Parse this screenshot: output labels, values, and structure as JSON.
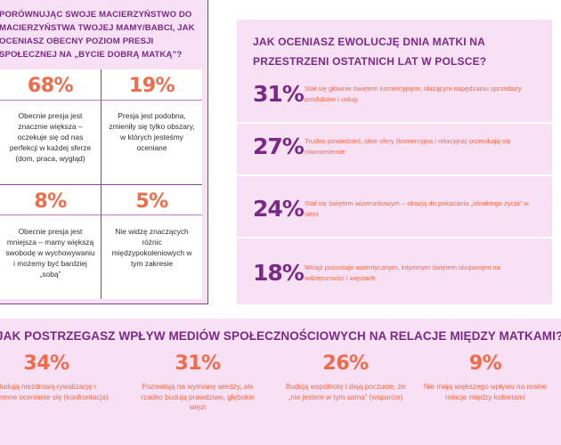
{
  "left": {
    "question": "Porównując swoje macierzyństwo do macierzyństwa twojej mamy/babci, jak oceniasz obecny poziom presji społecznej na „bycie dobrą matką”?",
    "cells": [
      {
        "percent": "68%",
        "text": "Obecnie presja jest znacznie większa – oczekuje się od nas perfekcji w każdej sferze (dom, praca, wygląd)"
      },
      {
        "percent": "19%",
        "text": "Presja jest podobna, zmieniły się tylko obszary, w których jesteśmy oceniane"
      },
      {
        "percent": "8%",
        "text": "Obecnie presja jest mniejsza – mamy większą swobodę w wychowywaniu i możemy być bardziej „sobą”"
      },
      {
        "percent": "5%",
        "text": "Nie widzę znaczących różnic międzypokoleniowych w tym zakresie"
      }
    ]
  },
  "right": {
    "question": "Jak oceniasz ewolucję dnia matki na przestrzeni ostatnich lat w Polsce?",
    "rows": [
      {
        "percent": "31%",
        "text": "Stał się głównie świętem komercyjnym, służącym napędzaniu sprzedaży produktów i usług"
      },
      {
        "percent": "27%",
        "text": "Trudno powiedzieć, obie sfery (komercyjna i relacyjna) przenikają się równomiernie"
      },
      {
        "percent": "24%",
        "text": "Stał się świętem wizerunkowym – okazją do pokazania „idealnego życia” w sieci"
      },
      {
        "percent": "18%",
        "text": "Wciąż pozostaje autentycznym, intymnym świętem skupionym na wdzięczności i więziach"
      }
    ]
  },
  "bottom": {
    "question": "Jak postrzegasz wpływ mediów społecznościowych na relacje między matkami?",
    "stats": [
      {
        "percent": "34%",
        "text": "Budują niezdrową rywalizację i wzajemne ocenianie się (konfrontacja)"
      },
      {
        "percent": "31%",
        "text": "Pozwalają na wymianę wiedzy, ale rzadko budują prawdziwe, głębokie więzi"
      },
      {
        "percent": "26%",
        "text": "Budują wspólnotę i dają poczucie, że „nie jestem w tym sama” (wsparcie)"
      },
      {
        "percent": "9%",
        "text": "Nie mają większego wpływu na realne relacje między kobietami"
      }
    ]
  },
  "colors": {
    "panel_bg": "#f8e1f4",
    "purple": "#7a2a86",
    "coral": "#f06b47",
    "border": "#8e3f95"
  }
}
